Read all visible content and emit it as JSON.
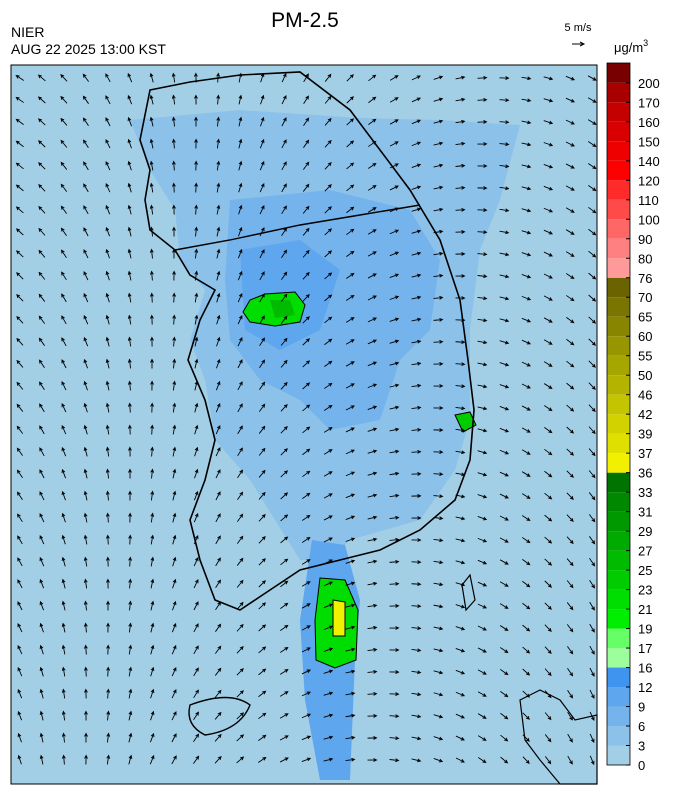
{
  "header": {
    "title": "PM-2.5",
    "agency": "NIER",
    "datetime": "AUG 22 2025 13:00 KST",
    "wind_scale": "5 m/s"
  },
  "colorbar": {
    "unit": "μg/m",
    "unit_exponent": "3",
    "ticks": [
      0,
      3,
      6,
      9,
      12,
      16,
      17,
      19,
      21,
      23,
      25,
      27,
      29,
      31,
      33,
      36,
      37,
      39,
      42,
      46,
      50,
      55,
      60,
      65,
      70,
      76,
      80,
      90,
      100,
      110,
      120,
      140,
      150,
      160,
      170,
      200
    ],
    "colors": [
      "#a3cfe6",
      "#8cc2ea",
      "#74b3ec",
      "#5ea6ee",
      "#3f94f0",
      "#9cff9c",
      "#66ff66",
      "#00ee00",
      "#00dd00",
      "#00cc00",
      "#00bb00",
      "#00aa00",
      "#009900",
      "#008800",
      "#007400",
      "#f0f000",
      "#e0e000",
      "#d2d200",
      "#c4c400",
      "#b4b400",
      "#a6a600",
      "#989600",
      "#888500",
      "#7a7400",
      "#6b6200",
      "#ff9a9a",
      "#ff8080",
      "#ff6666",
      "#ff4a4a",
      "#ff2a2a",
      "#ff0000",
      "#ee0000",
      "#d80000",
      "#c40000",
      "#a80000",
      "#780000"
    ]
  }
}
